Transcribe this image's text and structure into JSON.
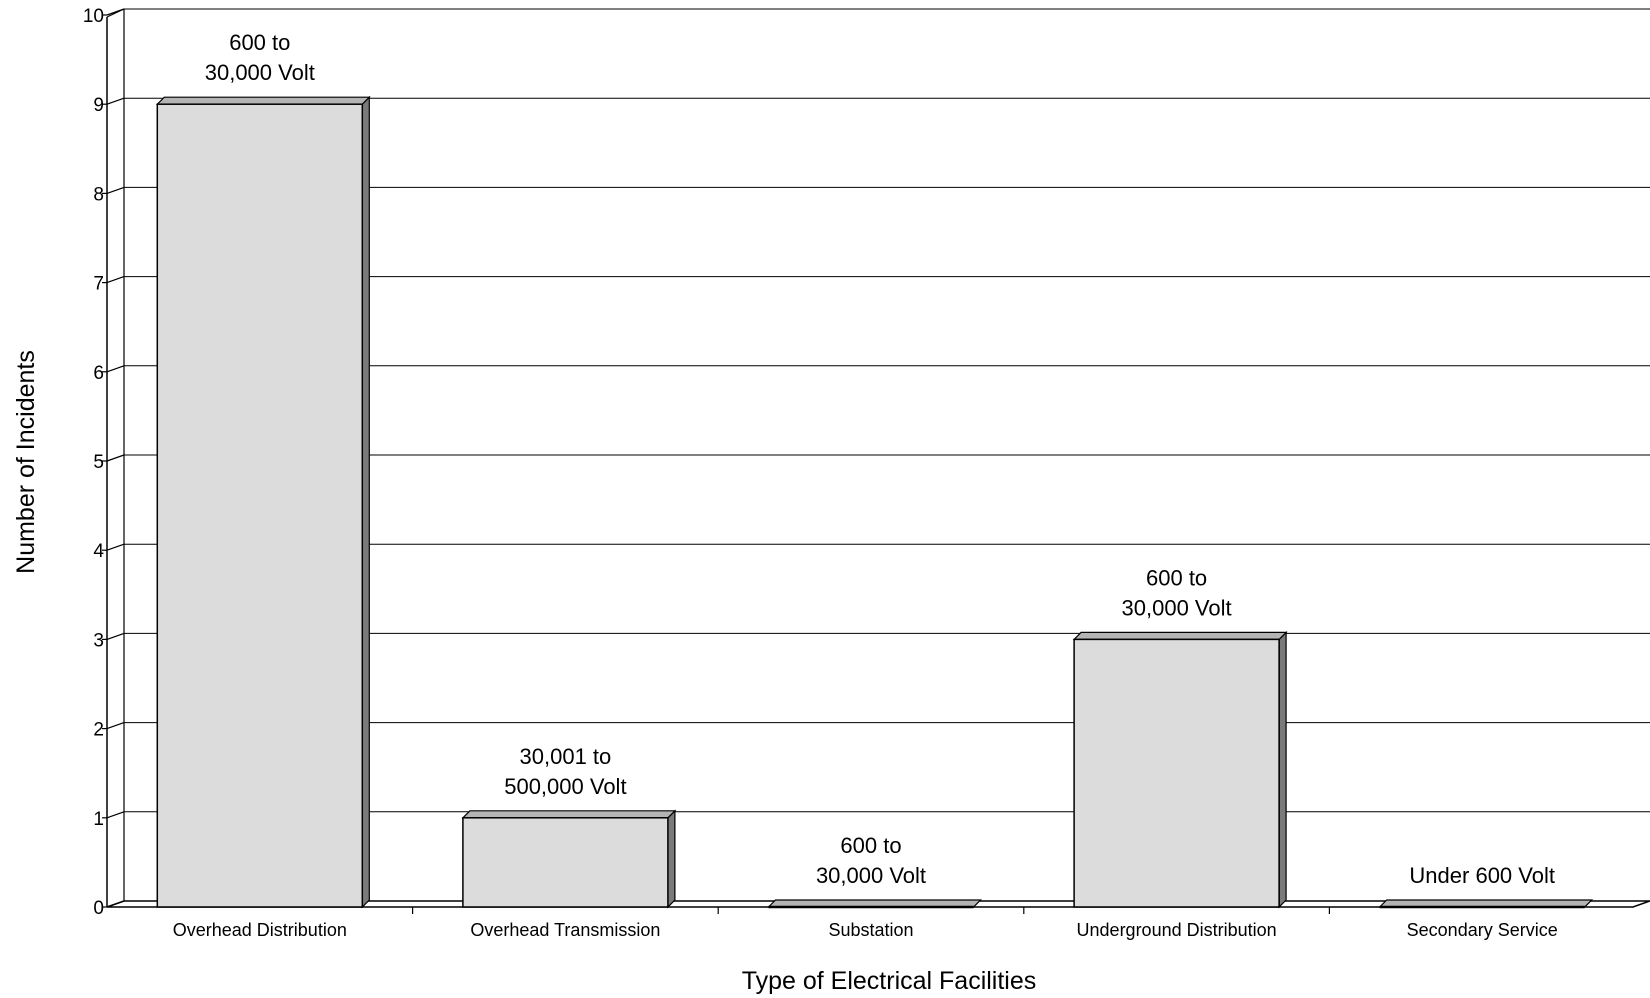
{
  "chart_data": {
    "type": "bar",
    "title": "",
    "xlabel": "Type of Electrical Facilities",
    "ylabel": "Number of Incidents",
    "ylim": [
      0,
      10
    ],
    "yticks": [
      "0",
      "1",
      "2",
      "3",
      "4",
      "5",
      "6",
      "7",
      "8",
      "9",
      "10"
    ],
    "grid": true,
    "categories": [
      "Overhead Distribution",
      "Overhead Transmission",
      "Substation",
      "Underground Distribution",
      "Secondary Service"
    ],
    "values": [
      9,
      1,
      0,
      3,
      0
    ],
    "bar_labels": [
      [
        "600 to",
        "30,000 Volt"
      ],
      [
        "30,001 to",
        "500,000 Volt"
      ],
      [
        "600 to",
        "30,000 Volt"
      ],
      [
        "600 to",
        "30,000 Volt"
      ],
      [
        "Under 600 Volt"
      ]
    ],
    "colors": {
      "bar_face": "#dcdcdc",
      "bar_side": "#7a7a7a",
      "bar_top": "#b4b4b4"
    }
  }
}
